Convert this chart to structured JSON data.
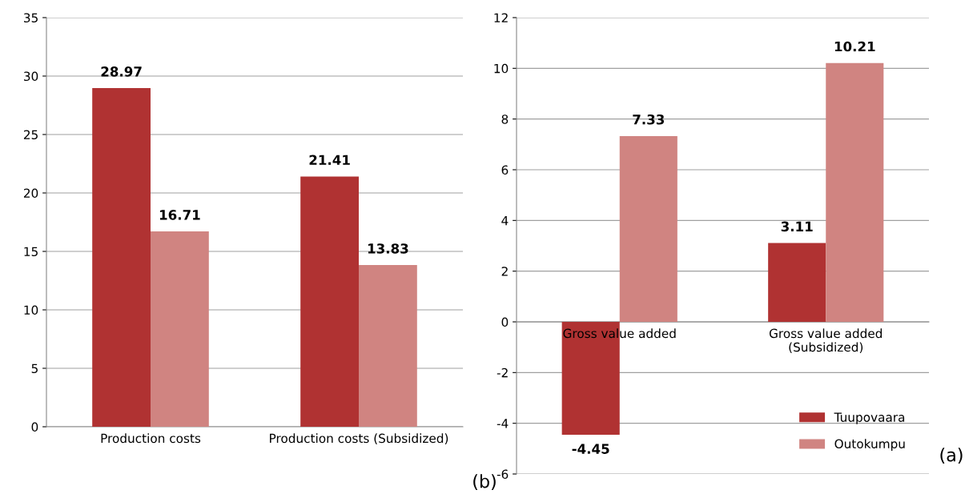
{
  "chart_data": [
    {
      "type": "bar",
      "categories": [
        "Production costs",
        "Production costs (Subsidized)"
      ],
      "series": [
        {
          "color": "#b03232",
          "values": [
            28.97,
            21.41
          ]
        },
        {
          "color": "#d08481",
          "values": [
            16.71,
            13.83
          ]
        }
      ],
      "ylim": [
        0,
        35
      ],
      "yticks": [
        0,
        5,
        10,
        15,
        20,
        25,
        30,
        35
      ],
      "grid": "y",
      "data_labels": true,
      "legend": false,
      "annotations": [
        "(b)"
      ]
    },
    {
      "type": "bar",
      "categories": [
        "Gross value added",
        "Gross value added\n(Subsidized)"
      ],
      "series": [
        {
          "name": "Tuupovaara",
          "color": "#b03232",
          "values": [
            -4.45,
            3.11
          ]
        },
        {
          "name": "Outokumpu",
          "color": "#d08481",
          "values": [
            7.33,
            10.21
          ]
        }
      ],
      "ylim": [
        -6,
        12
      ],
      "yticks": [
        -6,
        -4,
        -2,
        0,
        2,
        4,
        6,
        8,
        10,
        12
      ],
      "grid": "y",
      "data_labels": true,
      "legend": "bottom right",
      "annotations": [
        "(a)"
      ]
    }
  ]
}
